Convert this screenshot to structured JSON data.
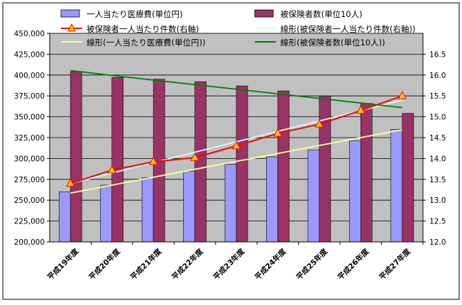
{
  "chart_data": {
    "type": "bar",
    "categories": [
      "平成19年度",
      "平成20年度",
      "平成21年度",
      "平成22年度",
      "平成23年度",
      "平成24年度",
      "平成25年度",
      "平成26年度",
      "平成27年度"
    ],
    "y_left": {
      "ylim": [
        200000,
        450000
      ],
      "ticks": [
        "200,000",
        "225,000",
        "250,000",
        "275,000",
        "300,000",
        "325,000",
        "350,000",
        "375,000",
        "400,000",
        "425,000",
        "450,000"
      ],
      "tick_values": [
        200000,
        225000,
        250000,
        275000,
        300000,
        325000,
        350000,
        375000,
        400000,
        425000,
        450000
      ]
    },
    "y_right": {
      "ylim": [
        12.0,
        17.0
      ],
      "ticks": [
        "12.0",
        "12.5",
        "13.0",
        "13.5",
        "14.0",
        "14.5",
        "15.0",
        "15.5",
        "16.0",
        "16.5"
      ],
      "tick_values": [
        12.0,
        12.5,
        13.0,
        13.5,
        14.0,
        14.5,
        15.0,
        15.5,
        16.0,
        16.5
      ]
    },
    "series": [
      {
        "name": "一人当たり医療費(単位円)",
        "kind": "bar",
        "axis": "left",
        "color": "#9999ff",
        "values": [
          260000,
          268000,
          277000,
          285000,
          293000,
          302000,
          310000,
          321000,
          335000
        ]
      },
      {
        "name": "被保険者数(単位10人)",
        "kind": "bar",
        "axis": "left",
        "color": "#993366",
        "values": [
          404000,
          397000,
          395000,
          392000,
          387000,
          381000,
          375000,
          366000,
          354000
        ]
      },
      {
        "name": "被保険者一人当たり件数(右軸)",
        "kind": "line",
        "axis": "right",
        "color": "#ff0000",
        "marker": "triangle",
        "values": [
          13.4,
          13.72,
          13.92,
          14.02,
          14.3,
          14.6,
          14.82,
          15.15,
          15.5
        ]
      },
      {
        "name": "線形(被保険者一人当たり件数(右軸))",
        "kind": "trend",
        "axis": "right",
        "color": "#ccffff",
        "values": [
          13.4,
          13.65,
          13.9,
          14.15,
          14.4,
          14.65,
          14.9,
          15.15,
          15.4
        ]
      },
      {
        "name": "線形(一人当たり医療費(単位円))",
        "kind": "trend",
        "axis": "left",
        "color": "#ffff99",
        "values": [
          258500,
          268000,
          277500,
          287000,
          296500,
          306000,
          315500,
          325000,
          334500
        ]
      },
      {
        "name": "線形(被保険者数(単位10人))",
        "kind": "trend",
        "axis": "left",
        "color": "#008000",
        "values": [
          405500,
          399500,
          394000,
          388500,
          383000,
          377500,
          372000,
          366500,
          361000
        ]
      }
    ],
    "legend": [
      {
        "label": "一人当たり医療費(単位円)",
        "type": "box",
        "color": "#9999ff",
        "row": 0,
        "col": 0
      },
      {
        "label": "被保険者数(単位10人)",
        "type": "box",
        "color": "#993366",
        "row": 0,
        "col": 1
      },
      {
        "label": "被保険者一人当たり件数(右軸)",
        "type": "marker",
        "color": "#ff0000",
        "row": 1,
        "col": 0
      },
      {
        "label": "線形(被保険者一人当たり件数(右軸))",
        "type": "line",
        "color": "#ccffff",
        "row": 1,
        "col": 1
      },
      {
        "label": "線形(一人当たり医療費(単位円))",
        "type": "line",
        "color": "#ffff99",
        "row": 2,
        "col": 0
      },
      {
        "label": "線形(被保険者数(単位10人))",
        "type": "line",
        "color": "#008000",
        "row": 2,
        "col": 1
      }
    ],
    "legend_position": "top",
    "plot_background": "#c0c0c0",
    "grid": true
  }
}
